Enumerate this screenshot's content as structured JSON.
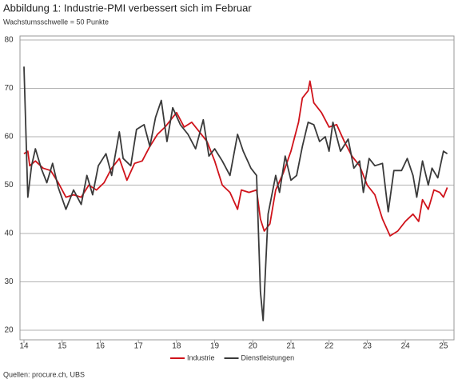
{
  "chart_data": {
    "type": "line",
    "title": "Abbildung 1: Industrie-PMI verbessert sich im Februar",
    "subtitle": "Wachstumsschwelle = 50 Punkte",
    "source": "Quellen: procure.ch, UBS",
    "xlim": [
      14,
      25.15
    ],
    "xticks": [
      14,
      15,
      16,
      17,
      18,
      19,
      20,
      21,
      22,
      23,
      24,
      25
    ],
    "ylim": [
      20,
      80
    ],
    "yticks": [
      20,
      30,
      40,
      50,
      60,
      70,
      80
    ],
    "grid": true,
    "legend": "bottom",
    "series": [
      {
        "name": "Industrie",
        "color": "#d0131b",
        "x": [
          14.0,
          14.1,
          14.15,
          14.3,
          14.5,
          14.7,
          14.9,
          15.1,
          15.3,
          15.5,
          15.7,
          15.9,
          16.1,
          16.3,
          16.5,
          16.7,
          16.9,
          17.1,
          17.3,
          17.5,
          17.7,
          17.9,
          18.0,
          18.2,
          18.4,
          18.6,
          18.8,
          19.0,
          19.2,
          19.4,
          19.6,
          19.7,
          19.9,
          20.1,
          20.2,
          20.3,
          20.45,
          20.6,
          20.8,
          21.0,
          21.2,
          21.3,
          21.45,
          21.5,
          21.6,
          21.8,
          22.0,
          22.2,
          22.4,
          22.6,
          22.8,
          23.0,
          23.2,
          23.4,
          23.6,
          23.8,
          24.0,
          24.2,
          24.35,
          24.45,
          24.6,
          24.75,
          24.9,
          25.0,
          25.1
        ],
        "values": [
          56.5,
          57,
          54,
          55,
          53.5,
          53,
          50.5,
          47.5,
          48,
          47.5,
          50,
          49,
          50.5,
          53.5,
          55.5,
          51,
          54.5,
          55,
          58,
          60.5,
          62,
          64,
          65,
          62,
          63,
          61,
          59,
          55,
          50,
          48.5,
          45,
          49,
          48.5,
          49,
          43,
          40.5,
          42,
          49,
          52.5,
          57,
          63,
          68,
          69.5,
          71.5,
          67,
          65,
          62,
          62.5,
          59,
          56,
          54,
          50,
          48,
          43,
          39.5,
          40.5,
          42.5,
          44,
          42.5,
          47,
          45,
          49,
          48.5,
          47.5,
          49.5
        ]
      },
      {
        "name": "Dienstleistungen",
        "color": "#3a3a3a",
        "x": [
          14.0,
          14.1,
          14.2,
          14.3,
          14.45,
          14.6,
          14.75,
          14.9,
          15.1,
          15.3,
          15.5,
          15.65,
          15.8,
          15.95,
          16.15,
          16.3,
          16.5,
          16.6,
          16.8,
          16.95,
          17.15,
          17.3,
          17.45,
          17.6,
          17.75,
          17.9,
          18.1,
          18.3,
          18.5,
          18.7,
          18.85,
          19.0,
          19.2,
          19.4,
          19.6,
          19.75,
          19.95,
          20.1,
          20.2,
          20.27,
          20.4,
          20.6,
          20.7,
          20.85,
          21.0,
          21.15,
          21.3,
          21.45,
          21.6,
          21.75,
          21.9,
          22.0,
          22.1,
          22.3,
          22.5,
          22.65,
          22.8,
          22.9,
          23.05,
          23.2,
          23.4,
          23.55,
          23.7,
          23.9,
          24.05,
          24.2,
          24.3,
          24.45,
          24.6,
          24.7,
          24.85,
          25.0,
          25.1
        ],
        "values": [
          74.5,
          47.5,
          54,
          57.5,
          53.5,
          50.5,
          54.5,
          49.5,
          45,
          49,
          46,
          52,
          48,
          54,
          56.5,
          52,
          61,
          55.5,
          54,
          61.5,
          62.5,
          58,
          64,
          67.5,
          59,
          66,
          62.5,
          60.5,
          57.5,
          63.5,
          56,
          57.5,
          55,
          52,
          60.5,
          57,
          53.5,
          52,
          28,
          22,
          44,
          52,
          48.5,
          56,
          51,
          52,
          58,
          63,
          62.5,
          59,
          60,
          57,
          63,
          57,
          59.5,
          53.5,
          55,
          48.5,
          55.5,
          54,
          54.5,
          44.5,
          53,
          53,
          55.5,
          52,
          47.5,
          55,
          50,
          53.5,
          51.5,
          57,
          56.5
        ]
      }
    ]
  }
}
